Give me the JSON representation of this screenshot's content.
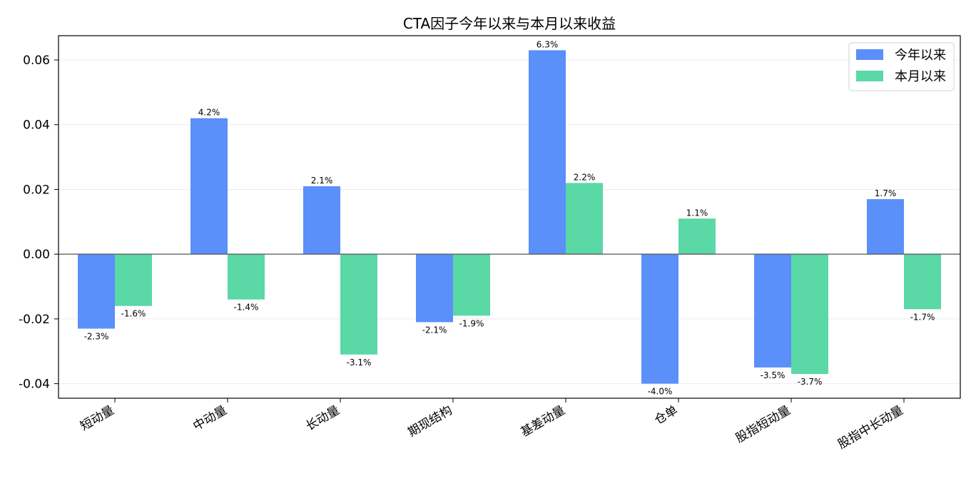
{
  "chart_data": {
    "type": "bar",
    "title": "CTA因子今年以来与本月以来收益",
    "categories": [
      "短动量",
      "中动量",
      "长动量",
      "期现结构",
      "基差动量",
      "仓单",
      "股指短动量",
      "股指中长动量"
    ],
    "series": [
      {
        "name": "今年以来",
        "color": "#5b8ff9",
        "values": [
          -0.023,
          0.042,
          0.021,
          -0.021,
          0.063,
          -0.04,
          -0.035,
          0.017
        ],
        "labels": [
          "-2.3%",
          "4.2%",
          "2.1%",
          "-2.1%",
          "6.3%",
          "-4.0%",
          "-3.5%",
          "1.7%"
        ]
      },
      {
        "name": "本月以来",
        "color": "#5ad8a6",
        "values": [
          -0.016,
          -0.014,
          -0.031,
          -0.019,
          0.022,
          0.011,
          -0.037,
          -0.017
        ],
        "labels": [
          "-1.6%",
          "-1.4%",
          "-3.1%",
          "-1.9%",
          "2.2%",
          "1.1%",
          "-3.7%",
          "-1.7%"
        ]
      }
    ],
    "yticks": [
      0.06,
      0.04,
      0.02,
      0.0,
      -0.02,
      -0.04
    ],
    "ytick_labels": [
      "0.06",
      "0.04",
      "0.02",
      "0.00",
      "-0.02",
      "-0.04"
    ],
    "ylim": [
      -0.0445,
      0.0675
    ],
    "grid": "horizontal",
    "legend_position": "top-right",
    "xlabel": "",
    "ylabel": ""
  }
}
